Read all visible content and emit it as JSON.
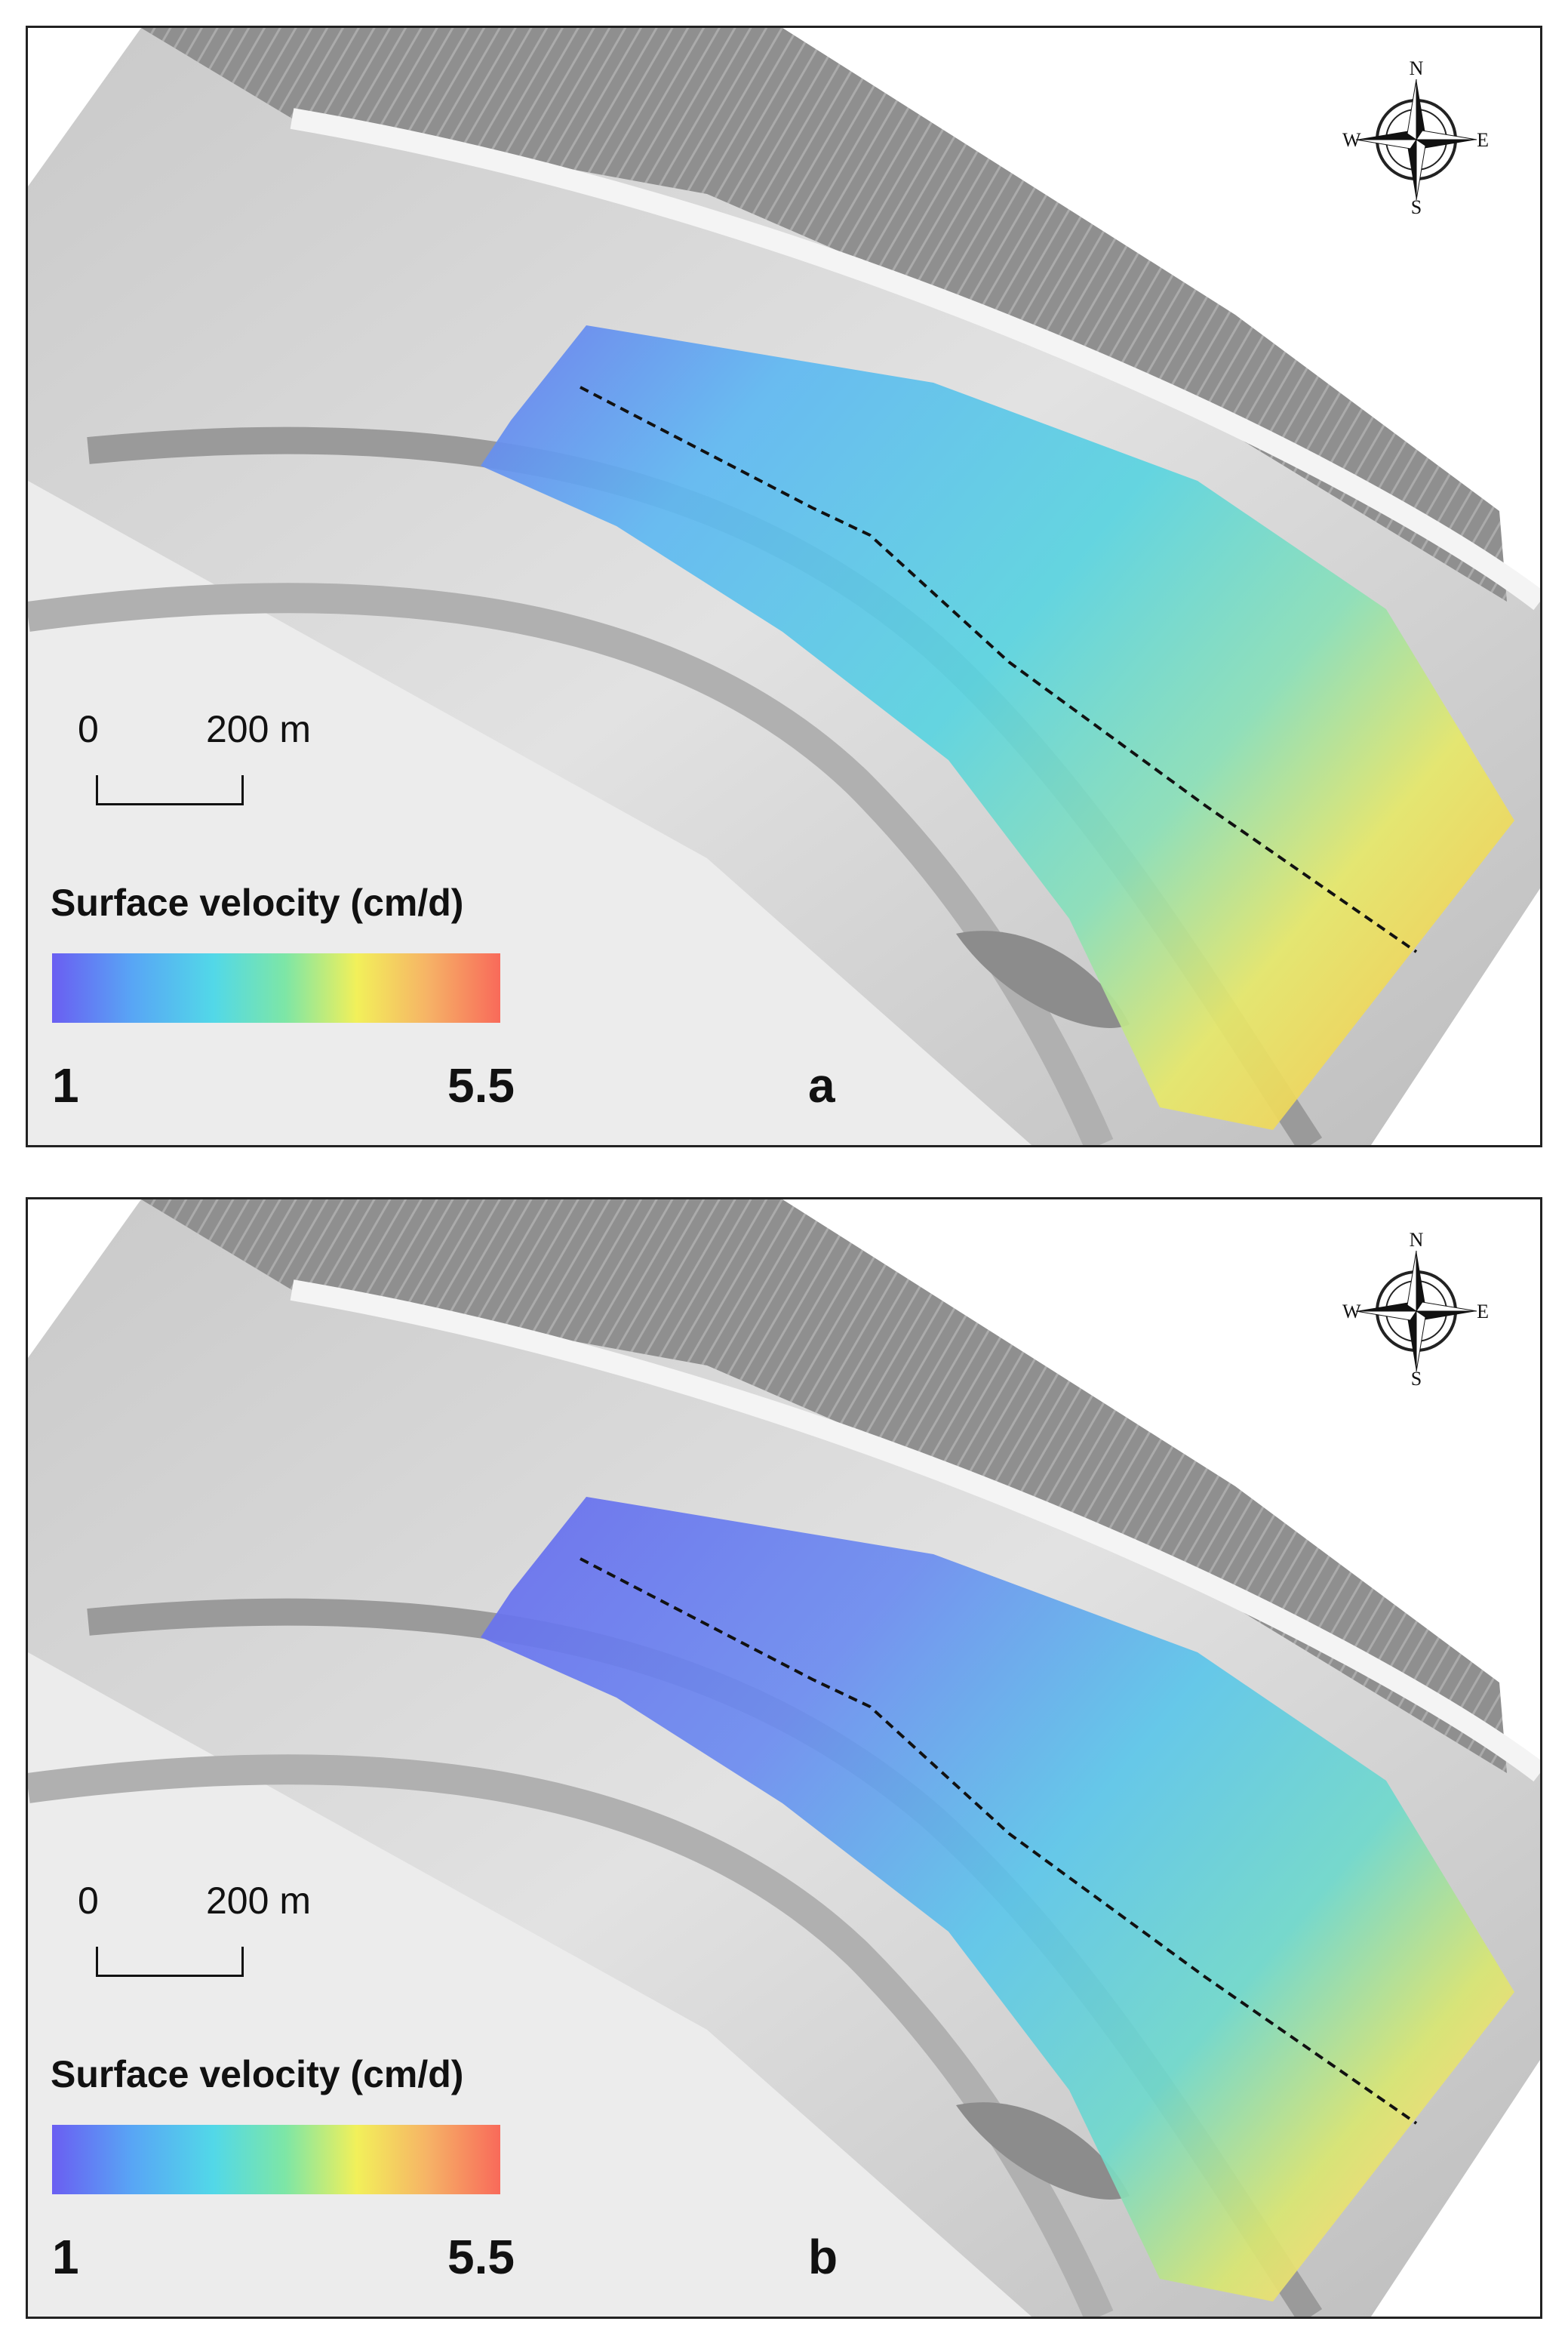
{
  "panels": [
    {
      "letter": "a",
      "scale": {
        "zero": "0",
        "distance": "200 m"
      },
      "legend": {
        "title": "Surface velocity (cm/d)",
        "min": "1",
        "max": "5.5",
        "colors": [
          "#6a5ef2",
          "#58a6f5",
          "#52d8e8",
          "#7de6a6",
          "#f2f05a",
          "#f6b266",
          "#f86a5a"
        ]
      },
      "compass": {
        "n": "N",
        "s": "S",
        "e": "E",
        "w": "W"
      }
    },
    {
      "letter": "b",
      "scale": {
        "zero": "0",
        "distance": "200 m"
      },
      "legend": {
        "title": "Surface velocity (cm/d)",
        "min": "1",
        "max": "5.5",
        "colors": [
          "#6a5ef2",
          "#58a6f5",
          "#52d8e8",
          "#7de6a6",
          "#f2f05a",
          "#f6b266",
          "#f86a5a"
        ]
      },
      "compass": {
        "n": "N",
        "s": "S",
        "e": "E",
        "w": "W"
      }
    }
  ]
}
